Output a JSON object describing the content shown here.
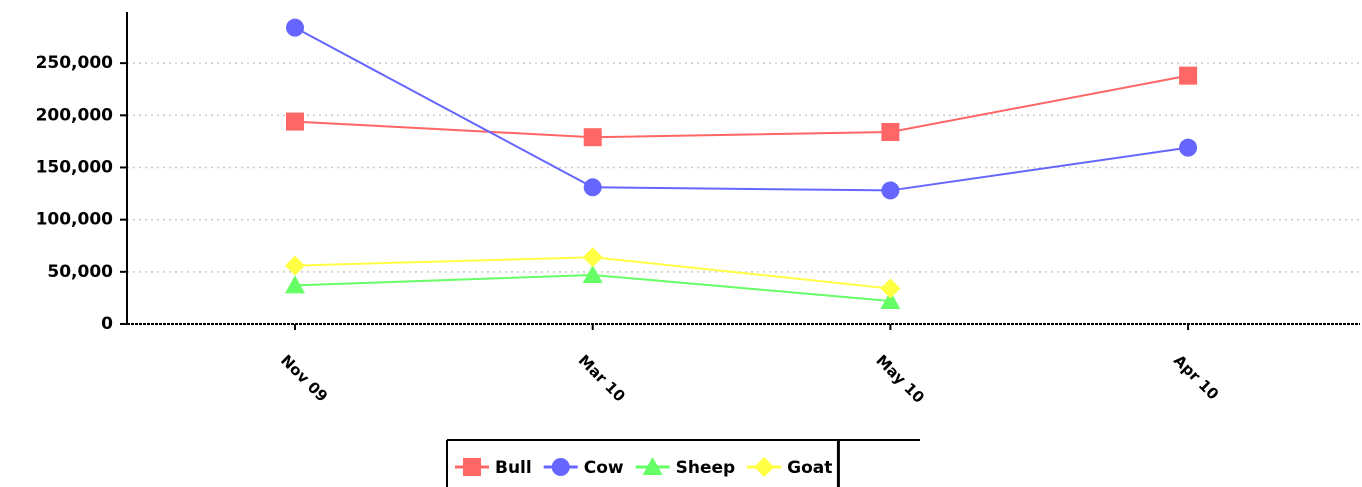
{
  "chart_data": {
    "type": "line",
    "categories": [
      "Nov 09",
      "Mar 10",
      "May 10",
      "Apr 10"
    ],
    "series": [
      {
        "name": "Bull",
        "color": "#ff6666",
        "marker": "square",
        "values": [
          194000,
          179000,
          184000,
          238000
        ]
      },
      {
        "name": "Cow",
        "color": "#6666ff",
        "marker": "circle",
        "values": [
          284000,
          131000,
          128000,
          169000
        ]
      },
      {
        "name": "Sheep",
        "color": "#66ff66",
        "marker": "triangle",
        "values": [
          37000,
          47000,
          22000,
          null
        ]
      },
      {
        "name": "Goat",
        "color": "#ffff44",
        "marker": "diamond",
        "values": [
          56000,
          64000,
          34000,
          null
        ]
      }
    ],
    "ylim": [
      0,
      299000
    ],
    "yticks": [
      0,
      {
        "value": 50000,
        "label": "50,000"
      },
      {
        "value": 100000,
        "label": "100,000"
      },
      {
        "value": 150000,
        "label": "150,000"
      },
      {
        "value": 200000,
        "label": "200,000"
      },
      {
        "value": 250000,
        "label": "250,000"
      }
    ],
    "grid": true,
    "legend": "bottom"
  }
}
